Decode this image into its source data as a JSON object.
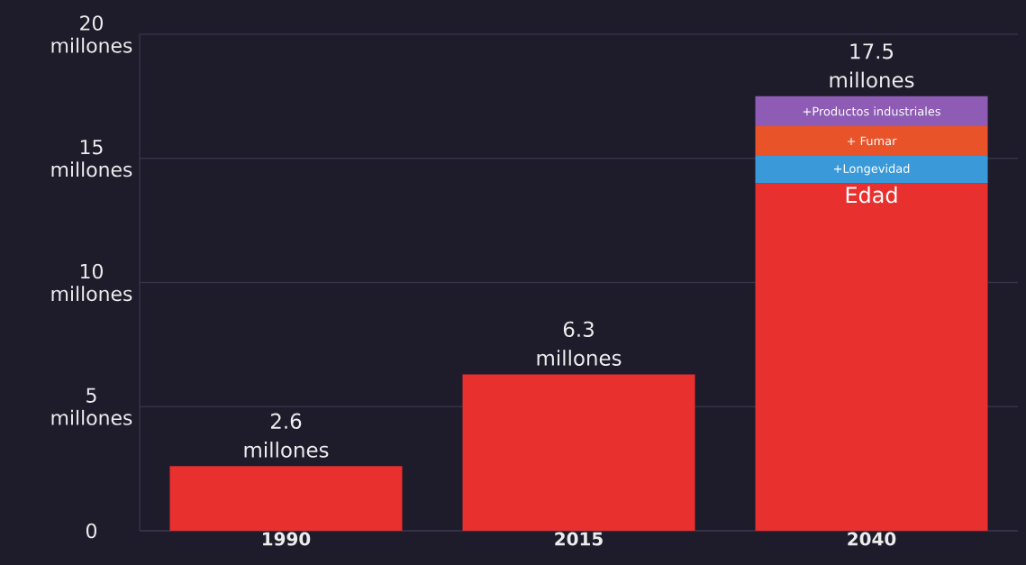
{
  "chart_data": {
    "type": "bar",
    "stacked": true,
    "categories": [
      "1990",
      "2015",
      "2040"
    ],
    "series": [
      {
        "name": "Edad",
        "color": "#e8302f",
        "values": [
          2.6,
          6.3,
          14.0
        ]
      },
      {
        "name": "+Longevidad",
        "color": "#3a9ad9",
        "values": [
          null,
          null,
          1.1
        ]
      },
      {
        "name": "+ Fumar",
        "color": "#e8532a",
        "values": [
          null,
          null,
          1.2
        ]
      },
      {
        "name": "+Productos industriales",
        "color": "#8e5bb5",
        "values": [
          null,
          null,
          1.2
        ]
      }
    ],
    "totals": [
      "2.6 millones",
      "6.3 millones",
      "17.5 millones"
    ],
    "ylim": [
      0,
      20
    ],
    "yticks": [
      0,
      {
        "value": 5,
        "label": "5 millones"
      },
      {
        "value": 10,
        "label": "10 millones"
      },
      {
        "value": 15,
        "label": "15 millones"
      },
      {
        "value": 20,
        "label": "20 millones"
      }
    ],
    "grid": "y"
  }
}
